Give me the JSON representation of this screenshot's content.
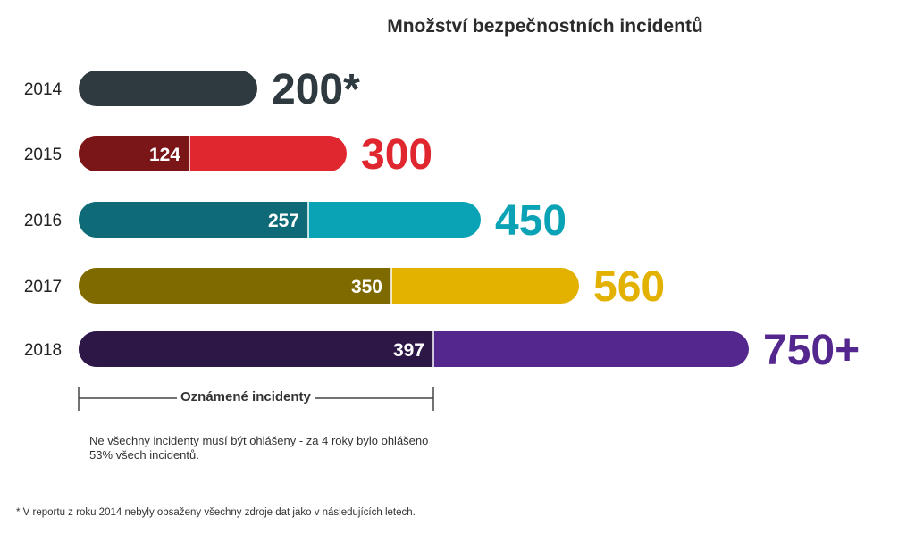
{
  "chart_data": {
    "type": "bar",
    "orientation": "horizontal",
    "title": "Množství bezpečnostních incidentů",
    "categories": [
      "2014",
      "2015",
      "2016",
      "2017",
      "2018"
    ],
    "series": [
      {
        "name": "Oznámené incidenty",
        "values": [
          null,
          124,
          257,
          350,
          397
        ]
      }
    ],
    "totals": [
      200,
      300,
      450,
      560,
      750
    ],
    "total_labels": [
      "200*",
      "300",
      "450",
      "560",
      "750+"
    ],
    "reported_labels": [
      "",
      "124",
      "257",
      "350",
      "397"
    ],
    "colors": {
      "total": [
        "#2e3a3f",
        "#e0262e",
        "#0aa3b5",
        "#e3b100",
        "#54278f"
      ],
      "reported": [
        "#2e3a3f",
        "#7a1518",
        "#0f6a77",
        "#7f6a00",
        "#2d1747"
      ]
    },
    "bracket_label": "Oznámené incidenty",
    "note": "Ne všechny incidenty musí být ohlášeny - za 4 roky bylo ohlášeno 53% všech incidentů.",
    "footnote": "* V reportu z roku 2014 nebyly obsaženy všechny zdroje dat jako v následujících letech."
  }
}
